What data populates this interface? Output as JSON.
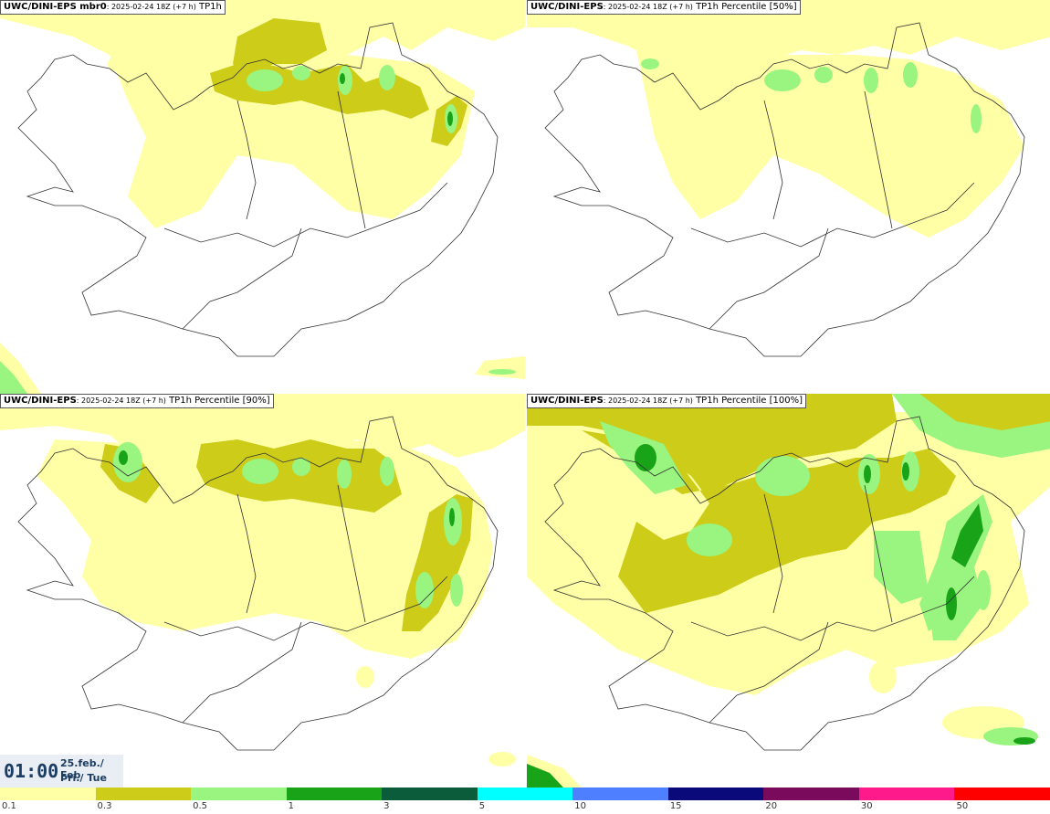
{
  "panels": [
    {
      "source": "UWC/DINI-EPS mbr0",
      "run": ": 2025-02-24 18Z (+7 h)",
      "field": " TP1h"
    },
    {
      "source": "UWC/DINI-EPS",
      "run": ": 2025-02-24 18Z (+7 h)",
      "field": " TP1h Percentile [50%]"
    },
    {
      "source": "UWC/DINI-EPS",
      "run": ": 2025-02-24 18Z (+7 h)",
      "field": " TP1h Percentile [90%]"
    },
    {
      "source": "UWC/DINI-EPS",
      "run": ": 2025-02-24 18Z (+7 h)",
      "field": " TP1h Percentile [100%]"
    }
  ],
  "clock": {
    "time": "01:00",
    "date": "25.feb./ Feb",
    "day": "Þri./ Tue"
  },
  "legend": {
    "ticks": [
      "0.1",
      "0.3",
      "0.5",
      "1",
      "3",
      "5",
      "10",
      "15",
      "20",
      "30",
      "50"
    ],
    "colors": [
      "#ffffa6",
      "#cccc19",
      "#99f57f",
      "#19a319",
      "#0a5c3a",
      "#00ffff",
      "#4d7fff",
      "#0a0a7a",
      "#7a0a5c",
      "#ff1a8c",
      "#ff0000"
    ]
  }
}
